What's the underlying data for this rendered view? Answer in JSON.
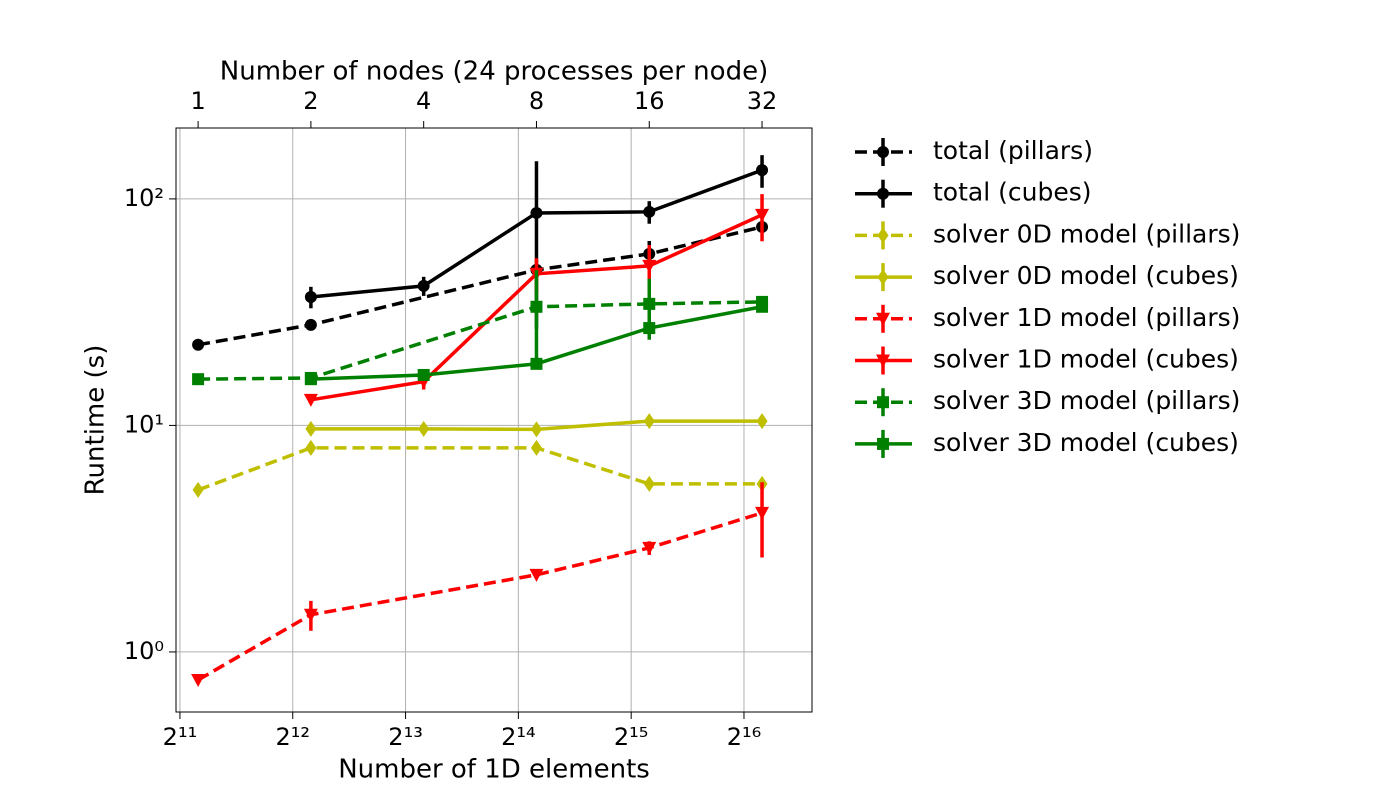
{
  "chart_data": {
    "type": "line",
    "xlabel": "Number of 1D elements",
    "x2label": "Number of nodes (24 processes per node)",
    "ylabel": "Runtime (s)",
    "xscale": "log",
    "yscale": "log",
    "grid": true,
    "legend": "outside right",
    "xlim": [
      1999,
      99540
    ],
    "xticks": [
      {
        "value": 2048,
        "label": "2¹¹"
      },
      {
        "value": 4096,
        "label": "2¹²"
      },
      {
        "value": 8192,
        "label": "2¹³"
      },
      {
        "value": 16384,
        "label": "2¹⁴"
      },
      {
        "value": 32768,
        "label": "2¹⁵"
      },
      {
        "value": 65536,
        "label": "2¹⁶"
      }
    ],
    "x2lim": [
      0.873,
      43.5
    ],
    "x2ticks": [
      1,
      2,
      4,
      8,
      16,
      32
    ],
    "ylim": [
      0.543,
      205.6
    ],
    "yticks": [
      {
        "value": 1,
        "label": "10⁰"
      },
      {
        "value": 10,
        "label": "10¹"
      },
      {
        "value": 100,
        "label": "10²"
      }
    ],
    "series": [
      {
        "name": "total (pillars)",
        "color": "#000000",
        "linestyle": "dashed",
        "marker": "circle",
        "x": [
          1,
          2,
          8,
          16,
          32
        ],
        "values": [
          22.7,
          27.8,
          48.6,
          57.2,
          75.2
        ],
        "errors": [
          null,
          null,
          null,
          8,
          null
        ]
      },
      {
        "name": "total (cubes)",
        "color": "#000000",
        "linestyle": "solid",
        "marker": "circle",
        "x": [
          2,
          4,
          8,
          16,
          32
        ],
        "values": [
          36.9,
          41.3,
          86.7,
          87.7,
          134
        ],
        "errors": [
          4,
          4,
          60,
          10,
          22
        ]
      },
      {
        "name": "solver 0D model (pillars)",
        "color": "#bfbf00",
        "linestyle": "dashed",
        "marker": "diamond",
        "x": [
          1,
          2,
          8,
          16,
          32
        ],
        "values": [
          5.19,
          7.96,
          7.96,
          5.52,
          5.52
        ],
        "errors": [
          null,
          null,
          null,
          null,
          null
        ]
      },
      {
        "name": "solver 0D model (cubes)",
        "color": "#bfbf00",
        "linestyle": "solid",
        "marker": "diamond",
        "x": [
          2,
          4,
          8,
          16,
          32
        ],
        "values": [
          9.66,
          9.66,
          9.6,
          10.45,
          10.45
        ],
        "errors": [
          null,
          null,
          null,
          null,
          null
        ]
      },
      {
        "name": "solver 1D model (pillars)",
        "color": "#ff0000",
        "linestyle": "dashed",
        "marker": "triangle-down",
        "x": [
          1,
          2,
          8,
          16,
          32
        ],
        "values": [
          0.752,
          1.46,
          2.19,
          2.88,
          4.11
        ],
        "errors": [
          null,
          0.22,
          null,
          0.2,
          1.5
        ]
      },
      {
        "name": "solver 1D model (cubes)",
        "color": "#ff0000",
        "linestyle": "solid",
        "marker": "triangle-down",
        "x": [
          2,
          4,
          8,
          16,
          32
        ],
        "values": [
          12.97,
          15.6,
          46.7,
          50.6,
          85
        ],
        "errors": [
          null,
          1.2,
          8,
          12,
          20
        ]
      },
      {
        "name": "solver 3D model (pillars)",
        "color": "#008000",
        "linestyle": "dashed",
        "marker": "square",
        "x": [
          1,
          2,
          8,
          16,
          32
        ],
        "values": [
          16.0,
          16.2,
          33.4,
          34.4,
          35.1
        ],
        "errors": [
          null,
          null,
          15,
          10,
          null
        ]
      },
      {
        "name": "solver 3D model (cubes)",
        "color": "#008000",
        "linestyle": "solid",
        "marker": "square",
        "x": [
          2,
          4,
          8,
          16,
          32
        ],
        "values": [
          16.0,
          16.7,
          18.7,
          26.9,
          33.4
        ],
        "errors": [
          null,
          null,
          null,
          3,
          null
        ]
      }
    ]
  }
}
